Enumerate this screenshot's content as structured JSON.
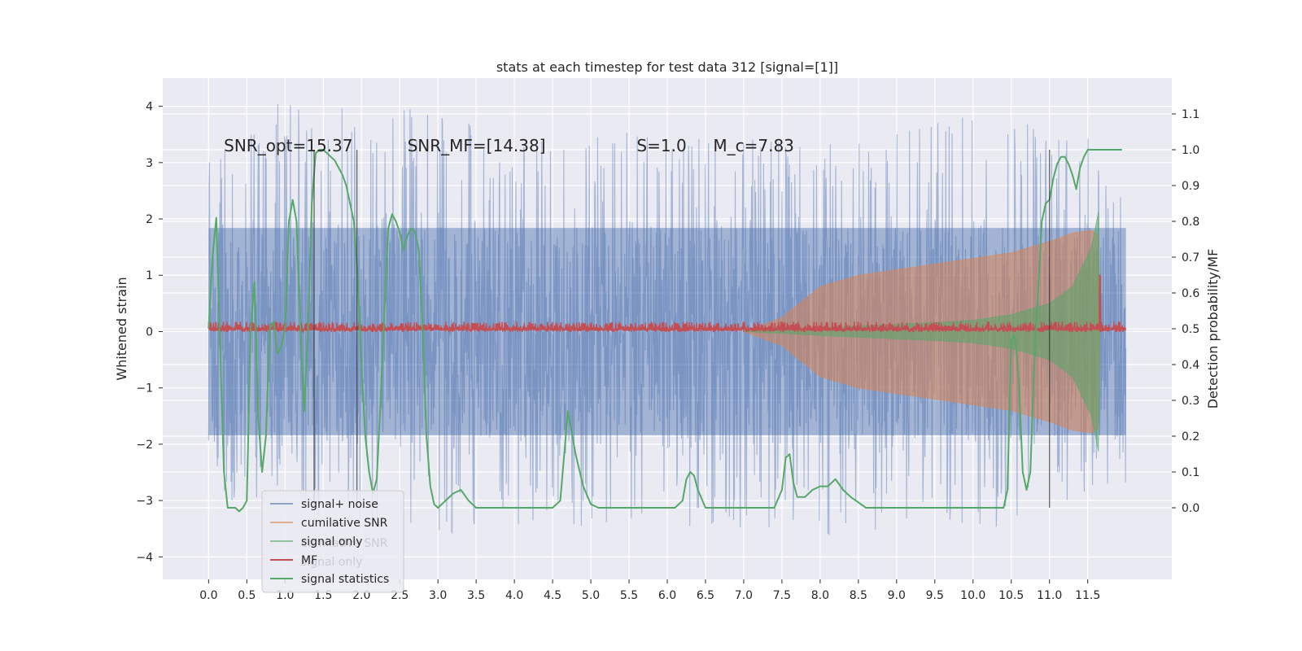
{
  "chart_data": {
    "type": "line",
    "title": "stats at each timestep for test data 312 [signal=[1]]",
    "xlabel": "",
    "ylabel": "Whitened strain",
    "ylabel_right": "Detection probability/MF",
    "xlim": [
      -0.6,
      12.6
    ],
    "ylim": [
      -4.4,
      4.5
    ],
    "ylim_right": [
      -0.2,
      1.2
    ],
    "x_ticks": [
      0.0,
      0.5,
      1.0,
      1.5,
      2.0,
      2.5,
      3.0,
      3.5,
      4.0,
      4.5,
      5.0,
      5.5,
      6.0,
      6.5,
      7.0,
      7.5,
      8.0,
      8.5,
      9.0,
      9.5,
      10.0,
      10.5,
      11.0,
      11.5
    ],
    "x_tick_labels": [
      "0.0",
      "0.5",
      "1.0",
      "1.5",
      "2.0",
      "2.5",
      "3.0",
      "3.5",
      "4.0",
      "4.5",
      "5.0",
      "5.5",
      "6.0",
      "6.5",
      "7.0",
      "7.5",
      "8.0",
      "8.5",
      "9.0",
      "9.5",
      "10.0",
      "10.5",
      "11.0",
      "11.5"
    ],
    "y_ticks": [
      -4,
      -3,
      -2,
      -1,
      0,
      1,
      2,
      3,
      4
    ],
    "y_tick_labels": [
      "−4",
      "−3",
      "−2",
      "−1",
      "0",
      "1",
      "2",
      "3",
      "4"
    ],
    "y_ticks_right": [
      0.0,
      0.1,
      0.2,
      0.3,
      0.4,
      0.5,
      0.6,
      0.7,
      0.8,
      0.9,
      1.0,
      1.1
    ],
    "y_tick_labels_right": [
      "0.0",
      "0.1",
      "0.2",
      "0.3",
      "0.4",
      "0.5",
      "0.6",
      "0.7",
      "0.8",
      "0.9",
      "1.0",
      "1.1"
    ],
    "annotations": [
      {
        "id": "snr-opt",
        "text": "SNR_opt=15.37",
        "x": 0.2,
        "y": 3.2
      },
      {
        "id": "snr-mf",
        "text": "SNR_MF=[14.38]",
        "x": 2.6,
        "y": 3.2
      },
      {
        "id": "s-value",
        "text": "S=1.0",
        "x": 5.6,
        "y": 3.2
      },
      {
        "id": "mc-value",
        "text": "M_c=7.83",
        "x": 6.6,
        "y": 3.2
      }
    ],
    "vertical_lines": [
      1.38,
      1.94,
      11.0
    ],
    "vertical_line_range_right": [
      0.0,
      1.0
    ],
    "legend": {
      "location": "lower-left",
      "entries": [
        "signal+ noise",
        "cumilative SNR",
        "signal only",
        "MF",
        "signal statistics"
      ],
      "ghost_entries": [
        "cumilative SNR",
        "signal only"
      ]
    },
    "series": [
      {
        "name": "signal+ noise",
        "axis": "left",
        "color": "#4c72b0",
        "x_range": [
          0.0,
          12.0
        ],
        "envelope": [
          {
            "x": 0.0,
            "upper": 3.1,
            "lower": -3.0
          },
          {
            "x": 0.8,
            "upper": 4.05,
            "lower": -3.0
          },
          {
            "x": 2.4,
            "upper": 4.1,
            "lower": -3.7
          },
          {
            "x": 4.0,
            "upper": 3.6,
            "lower": -3.5
          },
          {
            "x": 6.0,
            "upper": 3.6,
            "lower": -3.5
          },
          {
            "x": 8.0,
            "upper": 3.3,
            "lower": -3.7
          },
          {
            "x": 10.0,
            "upper": 3.9,
            "lower": -3.6
          },
          {
            "x": 11.5,
            "upper": 3.5,
            "lower": -3.0
          },
          {
            "x": 12.0,
            "upper": 2.3,
            "lower": -2.7
          }
        ],
        "core_abs": 2.0
      },
      {
        "name": "cumilative SNR",
        "axis": "left",
        "color": "#dd8452",
        "x": [
          7.0,
          7.5,
          8.0,
          8.5,
          9.0,
          9.5,
          10.0,
          10.5,
          11.0,
          11.3,
          11.55,
          11.65,
          11.66
        ],
        "amplitude": [
          0.0,
          0.25,
          0.8,
          1.0,
          1.1,
          1.2,
          1.3,
          1.4,
          1.6,
          1.75,
          1.8,
          1.7,
          0.0
        ]
      },
      {
        "name": "signal only",
        "axis": "left",
        "color": "#55a868",
        "x": [
          7.0,
          7.5,
          8.0,
          8.5,
          9.0,
          9.5,
          10.0,
          10.5,
          11.0,
          11.3,
          11.55,
          11.65,
          11.66
        ],
        "amplitude": [
          0.0,
          0.03,
          0.07,
          0.1,
          0.13,
          0.16,
          0.2,
          0.3,
          0.5,
          0.8,
          1.5,
          2.2,
          0.0
        ]
      },
      {
        "name": "MF",
        "axis": "left",
        "color": "#c44e52",
        "x_range": [
          0.0,
          12.0
        ],
        "baseline": 0.04,
        "peak_x": 11.66,
        "peak_y": 1.0
      },
      {
        "name": "signal statistics",
        "axis": "right",
        "color": "#55a868",
        "x": [
          0.0,
          0.05,
          0.1,
          0.15,
          0.2,
          0.25,
          0.3,
          0.35,
          0.4,
          0.45,
          0.5,
          0.55,
          0.6,
          0.65,
          0.7,
          0.75,
          0.8,
          0.85,
          0.9,
          0.95,
          1.0,
          1.05,
          1.1,
          1.15,
          1.2,
          1.25,
          1.3,
          1.35,
          1.4,
          1.45,
          1.5,
          1.55,
          1.6,
          1.65,
          1.7,
          1.75,
          1.8,
          1.85,
          1.9,
          1.95,
          2.0,
          2.05,
          2.1,
          2.15,
          2.2,
          2.25,
          2.3,
          2.35,
          2.4,
          2.45,
          2.5,
          2.55,
          2.6,
          2.65,
          2.7,
          2.75,
          2.8,
          2.85,
          2.9,
          2.95,
          3.0,
          3.1,
          3.2,
          3.3,
          3.4,
          3.5,
          3.6,
          3.8,
          4.0,
          4.2,
          4.4,
          4.5,
          4.6,
          4.7,
          4.8,
          4.9,
          5.0,
          5.1,
          5.2,
          5.4,
          5.6,
          5.8,
          6.0,
          6.1,
          6.2,
          6.25,
          6.3,
          6.35,
          6.4,
          6.5,
          6.7,
          7.0,
          7.2,
          7.4,
          7.5,
          7.55,
          7.6,
          7.65,
          7.7,
          7.8,
          7.9,
          8.0,
          8.1,
          8.2,
          8.3,
          8.4,
          8.6,
          8.8,
          9.0,
          9.2,
          9.5,
          9.8,
          10.0,
          10.2,
          10.4,
          10.45,
          10.5,
          10.55,
          10.6,
          10.65,
          10.7,
          10.75,
          10.8,
          10.85,
          10.9,
          10.95,
          11.0,
          11.05,
          11.1,
          11.15,
          11.2,
          11.25,
          11.3,
          11.35,
          11.4,
          11.45,
          11.5,
          11.55,
          11.6,
          11.65,
          11.7,
          11.8,
          11.9,
          11.95
        ],
        "values": [
          0.5,
          0.7,
          0.81,
          0.45,
          0.1,
          0.0,
          0.0,
          0.0,
          -0.01,
          0.0,
          0.02,
          0.5,
          0.63,
          0.25,
          0.1,
          0.2,
          0.5,
          0.52,
          0.43,
          0.45,
          0.5,
          0.8,
          0.86,
          0.8,
          0.5,
          0.27,
          0.5,
          0.85,
          0.99,
          1.0,
          1.0,
          0.99,
          0.98,
          0.97,
          0.95,
          0.93,
          0.9,
          0.85,
          0.8,
          0.65,
          0.4,
          0.2,
          0.1,
          0.04,
          0.08,
          0.3,
          0.55,
          0.78,
          0.82,
          0.8,
          0.77,
          0.72,
          0.76,
          0.78,
          0.77,
          0.72,
          0.5,
          0.2,
          0.06,
          0.01,
          0.0,
          0.02,
          0.04,
          0.05,
          0.02,
          0.0,
          0.0,
          0.0,
          0.0,
          0.0,
          0.0,
          0.0,
          0.02,
          0.27,
          0.15,
          0.06,
          0.01,
          0.0,
          0.0,
          0.0,
          0.0,
          0.0,
          0.0,
          0.0,
          0.02,
          0.08,
          0.1,
          0.09,
          0.05,
          0.0,
          0.0,
          0.0,
          0.0,
          0.0,
          0.05,
          0.14,
          0.15,
          0.07,
          0.03,
          0.03,
          0.05,
          0.06,
          0.06,
          0.08,
          0.05,
          0.03,
          0.0,
          0.0,
          0.0,
          0.0,
          0.0,
          0.0,
          0.0,
          0.0,
          0.0,
          0.05,
          0.47,
          0.48,
          0.35,
          0.1,
          0.05,
          0.1,
          0.4,
          0.6,
          0.8,
          0.85,
          0.86,
          0.92,
          0.96,
          0.98,
          0.98,
          0.96,
          0.93,
          0.89,
          0.95,
          0.98,
          1.0,
          1.0,
          1.0,
          1.0,
          1.0,
          1.0,
          1.0,
          1.0
        ]
      }
    ]
  }
}
